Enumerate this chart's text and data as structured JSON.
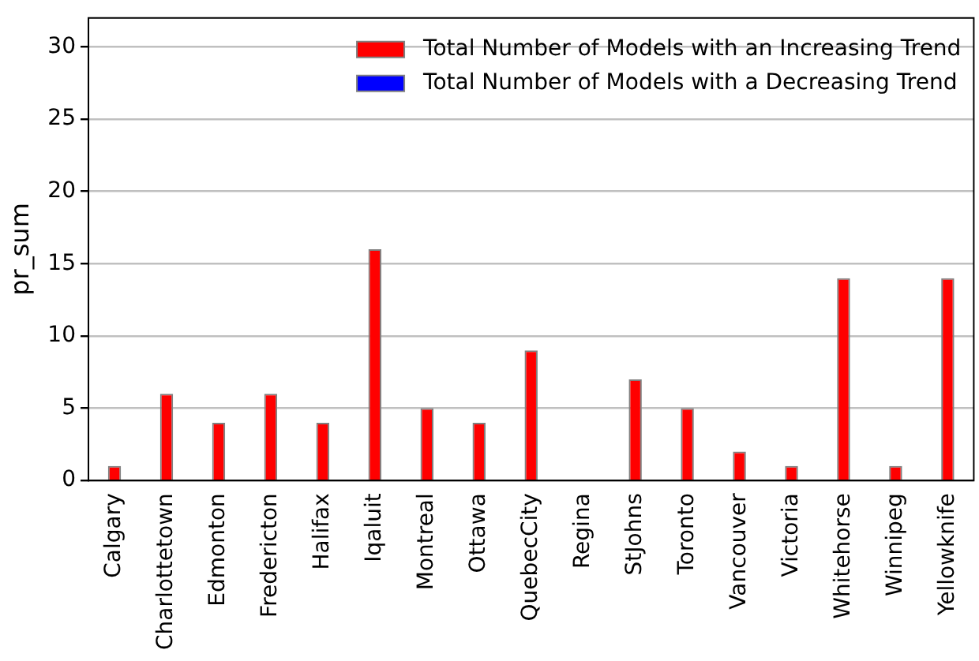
{
  "chart_data": {
    "type": "bar",
    "ylabel": "pr_sum",
    "stacked": true,
    "categories": [
      "Calgary",
      "Charlottetown",
      "Edmonton",
      "Fredericton",
      "Halifax",
      "Iqaluit",
      "Montreal",
      "Ottawa",
      "QuebecCity",
      "Regina",
      "StJohns",
      "Toronto",
      "Vancouver",
      "Victoria",
      "Whitehorse",
      "Winnipeg",
      "Yellowknife"
    ],
    "series": [
      {
        "name": "Total Number of Models with an Increasing Trend",
        "color": "#ff0000",
        "values": [
          1,
          6,
          4,
          6,
          4,
          16,
          5,
          4,
          9,
          0,
          7,
          5,
          2,
          1,
          14,
          1,
          14
        ]
      },
      {
        "name": "Total Number of Models with a Decreasing Trend",
        "color": "#0000ff",
        "values": [
          0,
          0,
          0,
          0,
          0,
          0,
          0,
          0,
          0,
          0,
          0,
          0,
          0,
          0,
          0,
          0,
          0
        ]
      }
    ],
    "ylim": [
      0,
      32
    ],
    "yticks": [
      0,
      5,
      10,
      15,
      20,
      25,
      30
    ],
    "grid": "y",
    "legend": "top right"
  }
}
